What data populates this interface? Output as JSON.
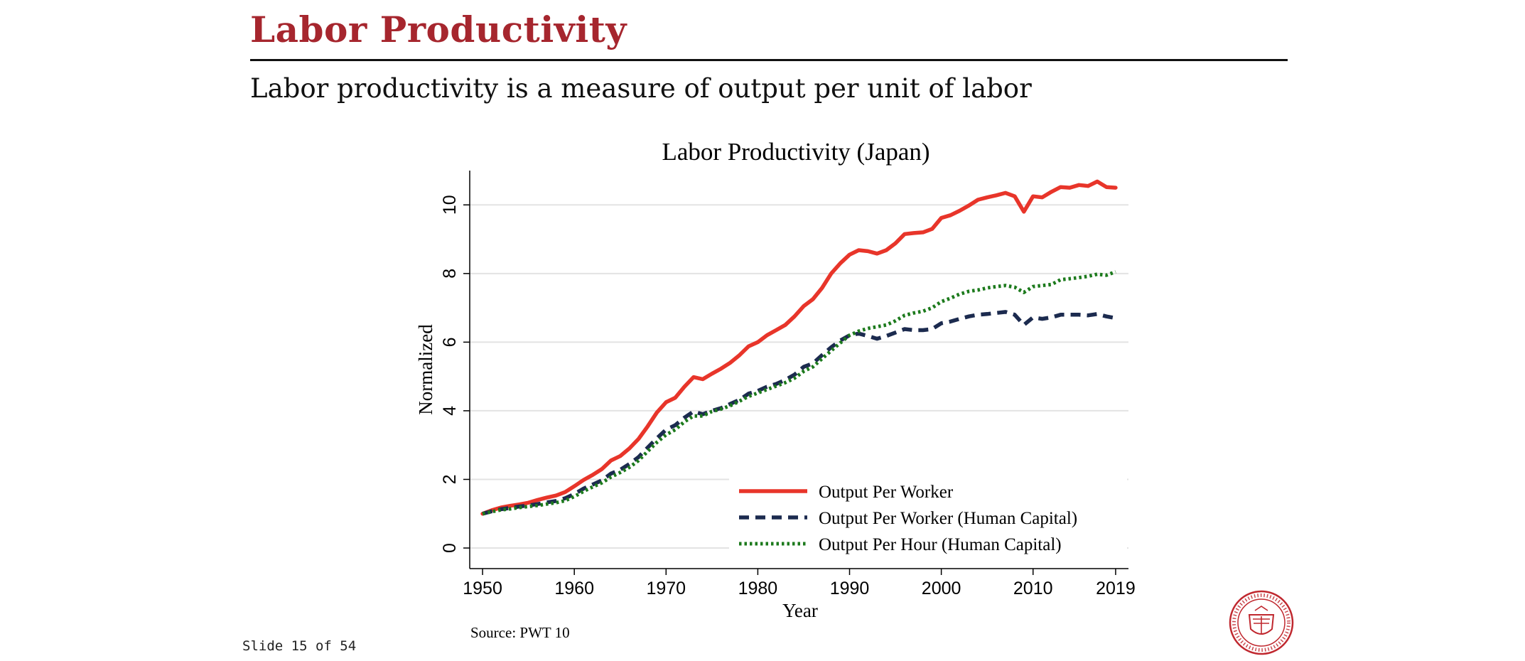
{
  "slide": {
    "title": "Labor Productivity",
    "subtitle": "Labor productivity is a measure of output per unit of labor",
    "source": "Source: PWT 10",
    "counter": "Slide 15 of 54",
    "seal_text": "CARNEGIE MELLON UNIVERSITY",
    "seal_subtext": "PITTSBURGH PENNSYLVANIA 1900"
  },
  "colors": {
    "title": "#a6262e",
    "series_1": "#e8352a",
    "series_2": "#1c2b4f",
    "series_3": "#1c7a1c",
    "grid": "#e3e3e3",
    "seal": "#c0282f"
  },
  "chart_data": {
    "type": "line",
    "title": "Labor Productivity (Japan)",
    "xlabel": "Year",
    "ylabel": "Normalized",
    "xlim": [
      1950,
      2019
    ],
    "ylim": [
      0,
      11
    ],
    "xticks": [
      1950,
      1960,
      1970,
      1980,
      1990,
      2000,
      2010,
      2019
    ],
    "yticks": [
      0,
      2,
      4,
      6,
      8,
      10
    ],
    "grid": true,
    "legend_position": "bottom-right",
    "x": [
      1950,
      1951,
      1952,
      1953,
      1954,
      1955,
      1956,
      1957,
      1958,
      1959,
      1960,
      1961,
      1962,
      1963,
      1964,
      1965,
      1966,
      1967,
      1968,
      1969,
      1970,
      1971,
      1972,
      1973,
      1974,
      1975,
      1976,
      1977,
      1978,
      1979,
      1980,
      1981,
      1982,
      1983,
      1984,
      1985,
      1986,
      1987,
      1988,
      1989,
      1990,
      1991,
      1992,
      1993,
      1994,
      1995,
      1996,
      1997,
      1998,
      1999,
      2000,
      2001,
      2002,
      2003,
      2004,
      2005,
      2006,
      2007,
      2008,
      2009,
      2010,
      2011,
      2012,
      2013,
      2014,
      2015,
      2016,
      2017,
      2018,
      2019
    ],
    "series": [
      {
        "name": "Output Per Worker",
        "style": "solid",
        "values": [
          1.0,
          1.1,
          1.18,
          1.23,
          1.27,
          1.32,
          1.4,
          1.47,
          1.53,
          1.63,
          1.8,
          1.98,
          2.13,
          2.3,
          2.55,
          2.68,
          2.9,
          3.18,
          3.55,
          3.95,
          4.25,
          4.38,
          4.7,
          4.98,
          4.92,
          5.08,
          5.23,
          5.4,
          5.62,
          5.88,
          6.0,
          6.2,
          6.35,
          6.5,
          6.75,
          7.05,
          7.25,
          7.58,
          8.0,
          8.3,
          8.55,
          8.68,
          8.65,
          8.58,
          8.68,
          8.88,
          9.15,
          9.18,
          9.2,
          9.3,
          9.62,
          9.7,
          9.83,
          9.98,
          10.15,
          10.22,
          10.28,
          10.35,
          10.25,
          9.8,
          10.25,
          10.22,
          10.38,
          10.52,
          10.5,
          10.58,
          10.55,
          10.68,
          10.52,
          10.5
        ]
      },
      {
        "name": "Output Per Worker (Human Capital)",
        "style": "dashed",
        "values": [
          1.0,
          1.07,
          1.13,
          1.17,
          1.21,
          1.24,
          1.28,
          1.33,
          1.37,
          1.45,
          1.57,
          1.73,
          1.85,
          1.97,
          2.17,
          2.28,
          2.45,
          2.65,
          2.93,
          3.2,
          3.45,
          3.58,
          3.8,
          3.98,
          3.9,
          4.0,
          4.08,
          4.2,
          4.32,
          4.5,
          4.58,
          4.7,
          4.78,
          4.9,
          5.05,
          5.28,
          5.38,
          5.62,
          5.85,
          6.05,
          6.2,
          6.25,
          6.18,
          6.1,
          6.18,
          6.28,
          6.38,
          6.35,
          6.35,
          6.38,
          6.55,
          6.6,
          6.68,
          6.75,
          6.8,
          6.82,
          6.85,
          6.88,
          6.8,
          6.5,
          6.72,
          6.68,
          6.72,
          6.8,
          6.8,
          6.8,
          6.78,
          6.82,
          6.75,
          6.7
        ]
      },
      {
        "name": "Output Per Hour (Human Capital)",
        "style": "dotted",
        "values": [
          1.0,
          1.06,
          1.11,
          1.14,
          1.18,
          1.21,
          1.24,
          1.28,
          1.32,
          1.38,
          1.5,
          1.65,
          1.78,
          1.9,
          2.07,
          2.2,
          2.35,
          2.55,
          2.82,
          3.08,
          3.3,
          3.45,
          3.68,
          3.85,
          3.85,
          3.98,
          4.05,
          4.15,
          4.28,
          4.42,
          4.52,
          4.62,
          4.72,
          4.82,
          4.95,
          5.15,
          5.28,
          5.52,
          5.75,
          5.98,
          6.2,
          6.32,
          6.4,
          6.45,
          6.5,
          6.62,
          6.78,
          6.85,
          6.9,
          7.0,
          7.18,
          7.28,
          7.4,
          7.48,
          7.52,
          7.58,
          7.62,
          7.65,
          7.6,
          7.45,
          7.62,
          7.65,
          7.68,
          7.82,
          7.85,
          7.88,
          7.92,
          7.98,
          7.95,
          8.05
        ]
      }
    ]
  }
}
